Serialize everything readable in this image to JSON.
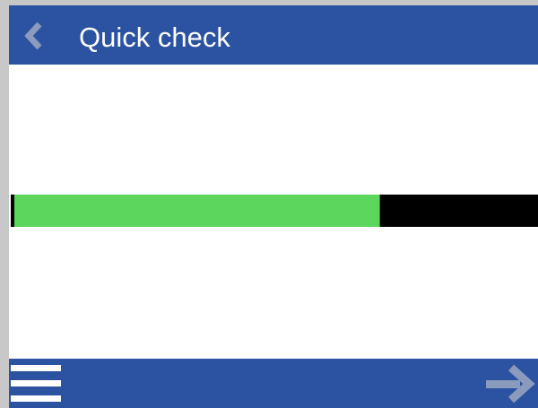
{
  "header": {
    "title": "Quick check"
  },
  "progress": {
    "value": 70,
    "fill_color": "#5cd65c",
    "track_color": "#000000"
  }
}
